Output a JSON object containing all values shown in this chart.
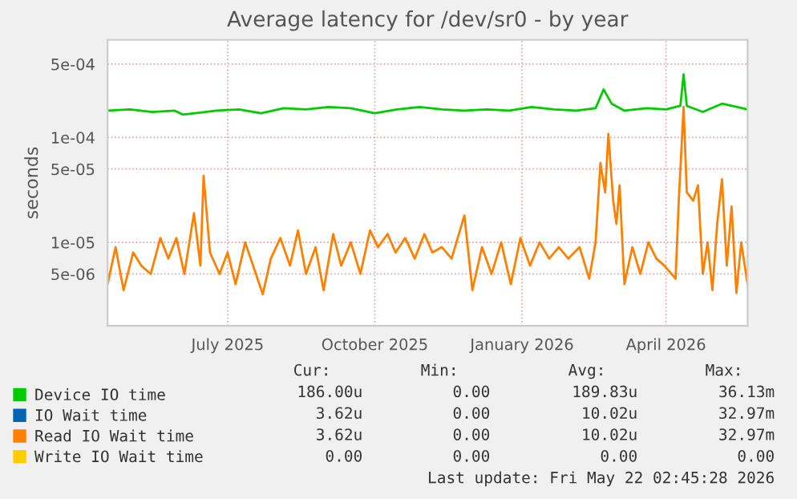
{
  "chart_data": {
    "type": "line",
    "title": "Average latency for /dev/sr0 - by year",
    "ylabel": "seconds",
    "log": "y",
    "xlim": [
      "2025-04-17",
      "2026-05-22"
    ],
    "xticks": [
      {
        "value": "2025-07-01",
        "label": "July 2025"
      },
      {
        "value": "2025-10-01",
        "label": "October 2025"
      },
      {
        "value": "2026-01-01",
        "label": "January 2026"
      },
      {
        "value": "2026-04-01",
        "label": "April 2026"
      }
    ],
    "ylim": [
      1.6e-06,
      0.00085
    ],
    "yticks": [
      {
        "value": 5e-06,
        "label": "5e-06"
      },
      {
        "value": 1e-05,
        "label": "1e-05"
      },
      {
        "value": 5e-05,
        "label": "5e-05"
      },
      {
        "value": 0.0001,
        "label": "1e-04"
      },
      {
        "value": 0.0005,
        "label": "5e-04"
      }
    ],
    "grid": true,
    "legend": "bottom",
    "series": [
      {
        "name": "Device IO time",
        "color": "#00cc00",
        "x": [
          "2025-04-17",
          "2025-05-01",
          "2025-05-15",
          "2025-05-29",
          "2025-06-03",
          "2025-06-24",
          "2025-07-08",
          "2025-07-22",
          "2025-08-05",
          "2025-08-19",
          "2025-09-02",
          "2025-09-16",
          "2025-10-01",
          "2025-10-15",
          "2025-10-29",
          "2025-11-12",
          "2025-11-26",
          "2025-12-10",
          "2025-12-24",
          "2026-01-07",
          "2026-01-21",
          "2026-02-04",
          "2026-02-16",
          "2026-02-21",
          "2026-02-26",
          "2026-03-06",
          "2026-03-20",
          "2026-04-01",
          "2026-04-10",
          "2026-04-12",
          "2026-04-14",
          "2026-04-24",
          "2026-05-06",
          "2026-05-22"
        ],
        "values": [
          0.00018,
          0.000185,
          0.000175,
          0.00018,
          0.000165,
          0.00018,
          0.000185,
          0.00017,
          0.00019,
          0.000185,
          0.000195,
          0.00019,
          0.00017,
          0.000185,
          0.000195,
          0.000185,
          0.00018,
          0.000185,
          0.00018,
          0.000195,
          0.000185,
          0.00018,
          0.00019,
          0.000287,
          0.00021,
          0.00018,
          0.00019,
          0.000185,
          0.0002,
          0.0004,
          0.0002,
          0.000175,
          0.00021,
          0.000185
        ]
      },
      {
        "name": "IO Wait time",
        "color": "#0066b3"
      },
      {
        "name": "Read IO Wait time",
        "color": "#ff8000",
        "x": [
          "2025-04-17",
          "2025-04-22",
          "2025-04-27",
          "2025-05-03",
          "2025-05-08",
          "2025-05-14",
          "2025-05-20",
          "2025-05-25",
          "2025-05-30",
          "2025-06-04",
          "2025-06-10",
          "2025-06-14",
          "2025-06-16",
          "2025-06-20",
          "2025-06-26",
          "2025-07-01",
          "2025-07-06",
          "2025-07-12",
          "2025-07-23",
          "2025-07-28",
          "2025-08-03",
          "2025-08-09",
          "2025-08-14",
          "2025-08-19",
          "2025-08-25",
          "2025-08-30",
          "2025-09-05",
          "2025-09-10",
          "2025-09-16",
          "2025-09-22",
          "2025-09-28",
          "2025-10-03",
          "2025-10-09",
          "2025-10-14",
          "2025-10-20",
          "2025-10-26",
          "2025-11-01",
          "2025-11-06",
          "2025-11-12",
          "2025-11-18",
          "2025-11-26",
          "2025-12-01",
          "2025-12-07",
          "2025-12-13",
          "2025-12-19",
          "2025-12-25",
          "2025-12-31",
          "2026-01-06",
          "2026-01-12",
          "2026-01-18",
          "2026-01-24",
          "2026-01-30",
          "2026-02-06",
          "2026-02-12",
          "2026-02-16",
          "2026-02-19",
          "2026-02-22",
          "2026-02-24",
          "2026-02-27",
          "2026-03-01",
          "2026-03-03",
          "2026-03-06",
          "2026-03-11",
          "2026-03-16",
          "2026-03-21",
          "2026-03-26",
          "2026-03-31",
          "2026-04-07",
          "2026-04-09",
          "2026-04-12",
          "2026-04-14",
          "2026-04-18",
          "2026-04-21",
          "2026-04-24",
          "2026-04-27",
          "2026-04-30",
          "2026-05-03",
          "2026-05-06",
          "2026-05-09",
          "2026-05-12",
          "2026-05-15",
          "2026-05-18",
          "2026-05-22"
        ],
        "values": [
          4e-06,
          9e-06,
          3.5e-06,
          8e-06,
          6e-06,
          5e-06,
          1.1e-05,
          7e-06,
          1.1e-05,
          5e-06,
          1.9e-05,
          6e-06,
          4.3e-05,
          8e-06,
          5e-06,
          8e-06,
          4e-06,
          1e-05,
          3.2e-06,
          7e-06,
          1.1e-05,
          6e-06,
          1.3e-05,
          5e-06,
          9e-06,
          3.5e-06,
          1.2e-05,
          6e-06,
          1e-05,
          5e-06,
          1.3e-05,
          9e-06,
          1.2e-05,
          8e-06,
          1.1e-05,
          7e-06,
          1.2e-05,
          8e-06,
          9e-06,
          7e-06,
          1.8e-05,
          3.5e-06,
          9e-06,
          5e-06,
          1e-05,
          4e-06,
          1.1e-05,
          6e-06,
          1e-05,
          7e-06,
          9e-06,
          7e-06,
          9e-06,
          4.5e-06,
          1e-05,
          5.7e-05,
          3e-05,
          0.000108,
          2.5e-05,
          1.5e-05,
          3.5e-05,
          4e-06,
          9e-06,
          5e-06,
          1e-05,
          7e-06,
          6e-06,
          4.5e-06,
          2.5e-05,
          0.000196,
          3e-05,
          2.5e-05,
          3.5e-05,
          5e-06,
          1e-05,
          3.5e-06,
          1.5e-05,
          4e-05,
          6e-06,
          2.2e-05,
          3.3e-06,
          1e-05,
          4e-06
        ]
      },
      {
        "name": "Write IO Wait time",
        "color": "#ffcc00"
      }
    ],
    "annotations": [
      "Cur:",
      "Min:",
      "Avg:",
      "Max:",
      "186.00u",
      "0.00",
      "189.83u",
      "36.13m",
      "3.62u",
      "0.00",
      "10.02u",
      "32.97m",
      "3.62u",
      "0.00",
      "10.02u",
      "32.97m",
      "0.00",
      "0.00",
      "0.00",
      "0.00",
      "Last update: Fri May 22 02:45:28 2026"
    ]
  }
}
